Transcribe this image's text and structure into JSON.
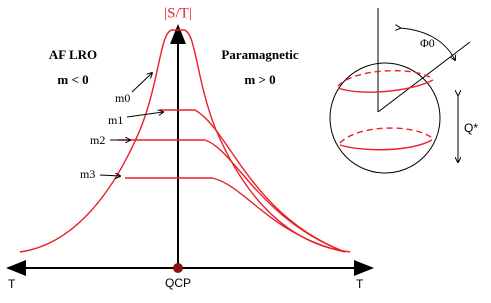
{
  "axis": {
    "y_label": "|S/T|",
    "x_left_label": "T",
    "x_right_label": "T",
    "origin_label": "QCP"
  },
  "regions": [
    {
      "title": "AF LRO",
      "condition": "m < 0"
    },
    {
      "title": "Paramagnetic",
      "condition": "m > 0"
    }
  ],
  "curves": [
    {
      "label": "m0"
    },
    {
      "label": "m1"
    },
    {
      "label": "m2"
    },
    {
      "label": "m3"
    }
  ],
  "sphere": {
    "angle_label": "Φ0",
    "height_label": "Q*"
  }
}
